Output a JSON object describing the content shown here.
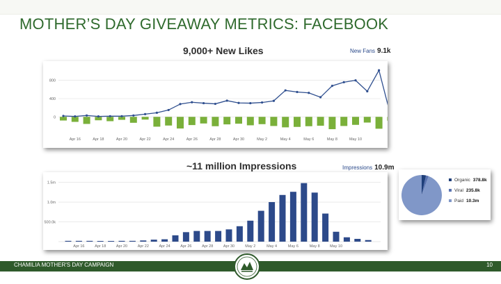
{
  "slide": {
    "title": "MOTHER’S DAY GIVEAWAY METRICS: FACEBOOK",
    "likes_caption": "9,000+ New Likes",
    "impressions_caption": "~11 million Impressions",
    "new_fans_label": "New Fans",
    "new_fans_value": "9.1k",
    "impressions_label": "Impressions",
    "impressions_value": "10.9m",
    "footer_text": "CHAMILIA MOTHER'S DAY CAMPAIGN",
    "page_number": "10"
  },
  "colors": {
    "title": "#2f6a2d",
    "footer": "#2f5a2b",
    "line": "#2f4f8f",
    "green_bar": "#7ab03a",
    "blue_bar": "#2d4a8a",
    "pie": "#8097c8"
  },
  "chart_data": [
    {
      "type": "line",
      "series": [
        {
          "values": [
            20,
            10,
            30,
            10,
            15,
            15,
            30,
            60,
            90,
            150,
            280,
            320,
            300,
            285,
            355,
            305,
            300,
            315,
            350,
            580,
            545,
            525,
            430,
            680,
            760,
            800,
            560,
            1020,
            30
          ]
        }
      ],
      "bars": [
        -80,
        -110,
        -155,
        -75,
        -95,
        -65,
        -130,
        -60,
        -215,
        -190,
        -255,
        -180,
        -145,
        -205,
        -165,
        -150,
        -185,
        -160,
        -200,
        -230,
        -220,
        -205,
        -195,
        -270,
        -200,
        -175,
        -125,
        -260,
        -85
      ],
      "x_tick_labels": [
        "Apr 16",
        "Apr 18",
        "Apr 20",
        "Apr 22",
        "Apr 24",
        "Apr 26",
        "Apr 28",
        "Apr 30",
        "May 2",
        "May 4",
        "May 6",
        "May 8",
        "May 10"
      ],
      "y_tick_labels": [
        "800",
        "400",
        "0"
      ],
      "ylim": [
        -300,
        1100
      ],
      "grid": true
    },
    {
      "type": "bar",
      "values": [
        0.02,
        0.02,
        0.02,
        0.01,
        0.01,
        0.02,
        0.02,
        0.03,
        0.05,
        0.06,
        0.16,
        0.24,
        0.27,
        0.27,
        0.27,
        0.31,
        0.39,
        0.53,
        0.78,
        1.0,
        1.18,
        1.26,
        1.48,
        1.24,
        0.71,
        0.25,
        0.11,
        0.07,
        0.04
      ],
      "x_tick_labels": [
        "Apr 16",
        "Apr 18",
        "Apr 20",
        "Apr 22",
        "Apr 24",
        "Apr 26",
        "Apr 28",
        "Apr 30",
        "May 2",
        "May 4",
        "May 6",
        "May 8",
        "May 10"
      ],
      "y_tick_labels": [
        "1.5m",
        "1.0m",
        "500.0k"
      ],
      "ylim": [
        0,
        1.65
      ],
      "grid": true
    },
    {
      "type": "pie",
      "labels": [
        "Organic",
        "Viral",
        "Paid"
      ],
      "values": [
        378.8,
        235.8,
        10300
      ],
      "value_labels": [
        "378.8k",
        "235.8k",
        "10.3m"
      ],
      "colors": [
        "#1f3f7a",
        "#5a73b0",
        "#8097c8"
      ]
    }
  ]
}
